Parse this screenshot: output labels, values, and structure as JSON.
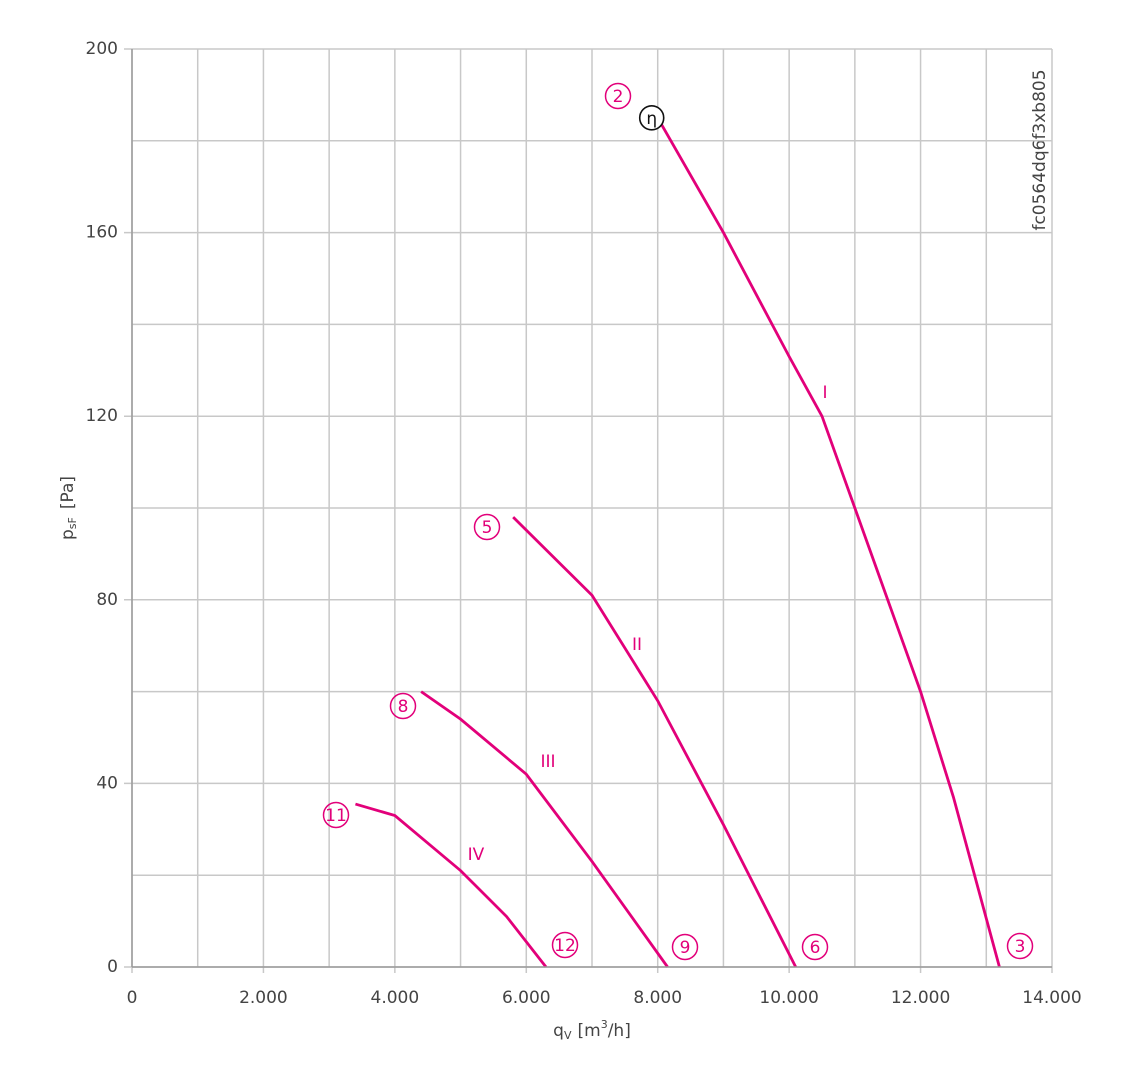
{
  "chart_data": {
    "type": "line",
    "xlabel": {
      "main": "q",
      "sub": "V",
      "unit_start": "[m",
      "unit_sup": "3",
      "unit_end": "/h]"
    },
    "ylabel": {
      "main": "p",
      "sub": "sF",
      "unit": "[Pa]"
    },
    "code": "fc0564dq6f3xb805",
    "eta_marker": "η",
    "xlim": [
      0,
      14000
    ],
    "ylim": [
      0,
      200
    ],
    "xticks": [
      0,
      {
        "value": 2000,
        "label": "2.000"
      },
      {
        "value": 4000,
        "label": "4.000"
      },
      {
        "value": 6000,
        "label": "6.000"
      },
      {
        "value": 8000,
        "label": "8.000"
      },
      {
        "value": 10000,
        "label": "10.000"
      },
      {
        "value": 12000,
        "label": "12.000"
      },
      {
        "value": 14000,
        "label": "14.000"
      }
    ],
    "yticks": [
      0,
      40,
      80,
      120,
      160,
      200
    ],
    "grid": true,
    "minor_grid": true,
    "series": [
      {
        "name": "I",
        "color": "#e2007a",
        "start_label": "2",
        "end_label": "3",
        "x": [
          8000,
          9000,
          10000,
          10500,
          11000,
          12000,
          12500,
          13200
        ],
        "values": [
          185,
          160,
          133,
          120,
          100,
          60,
          37,
          0
        ]
      },
      {
        "name": "II",
        "color": "#e2007a",
        "start_label": "5",
        "end_label": "6",
        "x": [
          5800,
          7000,
          8000,
          9000,
          10100
        ],
        "values": [
          98,
          81,
          58,
          31,
          0
        ]
      },
      {
        "name": "III",
        "color": "#e2007a",
        "start_label": "8",
        "end_label": "9",
        "x": [
          4400,
          5000,
          6000,
          7000,
          8150
        ],
        "values": [
          60,
          54,
          42,
          23,
          0
        ]
      },
      {
        "name": "IV",
        "color": "#e2007a",
        "start_label": "11",
        "end_label": "12",
        "x": [
          3400,
          4000,
          5000,
          5700,
          6300
        ],
        "values": [
          35.5,
          33,
          21,
          11,
          0
        ]
      }
    ]
  }
}
